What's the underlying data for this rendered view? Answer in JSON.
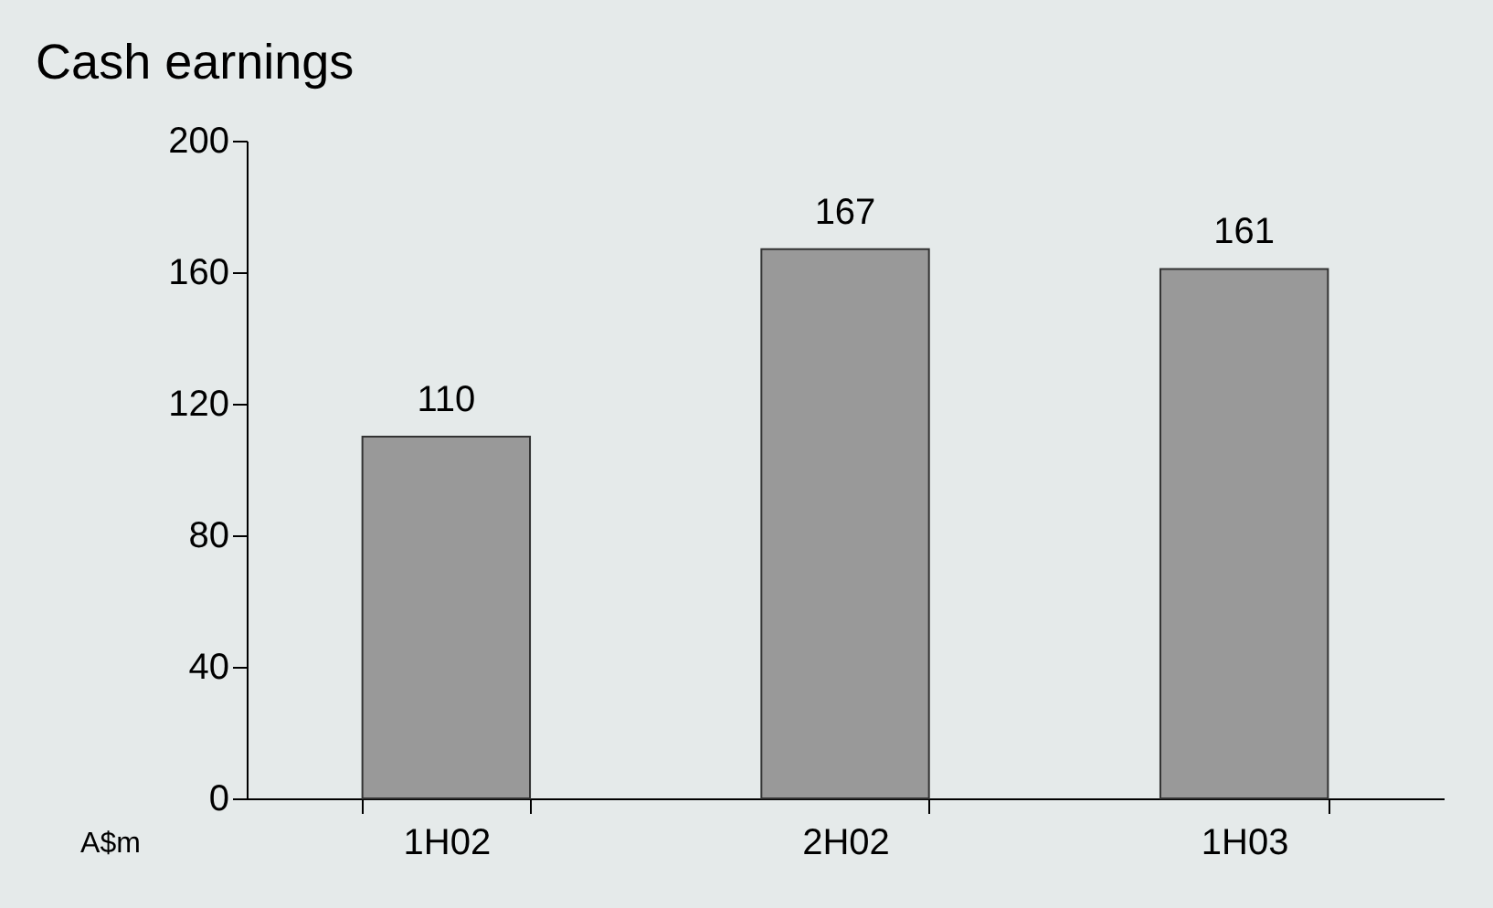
{
  "chart_data": {
    "type": "bar",
    "title": "Cash earnings",
    "ylabel": "A$m",
    "categories": [
      "1H02",
      "2H02",
      "1H03"
    ],
    "values": [
      110,
      167,
      161
    ],
    "color": "#999999",
    "ylim": [
      0,
      200
    ],
    "yticks": [
      0,
      40,
      80,
      120,
      160,
      200
    ],
    "grid": false,
    "data_labels": true
  }
}
